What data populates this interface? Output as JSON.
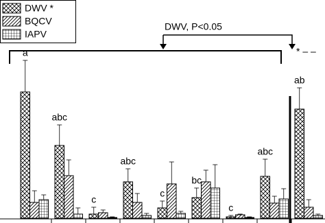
{
  "chart_data": {
    "type": "bar",
    "categories": [
      null,
      null,
      null,
      null,
      null,
      null,
      null,
      null,
      null
    ],
    "ylim": [
      0,
      300
    ],
    "series": [
      {
        "name": "DWV *",
        "pattern": "crosshatch",
        "color": "#000000",
        "values": [
          184,
          106,
          6,
          53,
          15,
          30,
          2,
          61,
          159
        ],
        "errors": [
          46,
          30,
          10,
          19,
          10,
          14,
          2,
          25,
          31
        ]
      },
      {
        "name": "BQCV",
        "pattern": "diagonal",
        "color": "#000000",
        "values": [
          23,
          62,
          8,
          23,
          50,
          53,
          5,
          22,
          16
        ],
        "errors": [
          17,
          23,
          4,
          13,
          32,
          17,
          1,
          10,
          11
        ]
      },
      {
        "name": "IAPV",
        "pattern": "grid",
        "color": "#000000",
        "values": [
          27,
          6,
          1,
          4,
          7,
          44,
          1,
          28,
          4
        ],
        "errors": [
          7,
          9,
          1,
          3,
          3,
          34,
          1,
          15,
          2
        ]
      }
    ],
    "letters": [
      "a",
      "abc",
      "c",
      "abc",
      "c",
      "bc",
      "c",
      "abc",
      "ab"
    ],
    "annotations": [
      "DWV, P<0.05",
      "* – –"
    ]
  }
}
